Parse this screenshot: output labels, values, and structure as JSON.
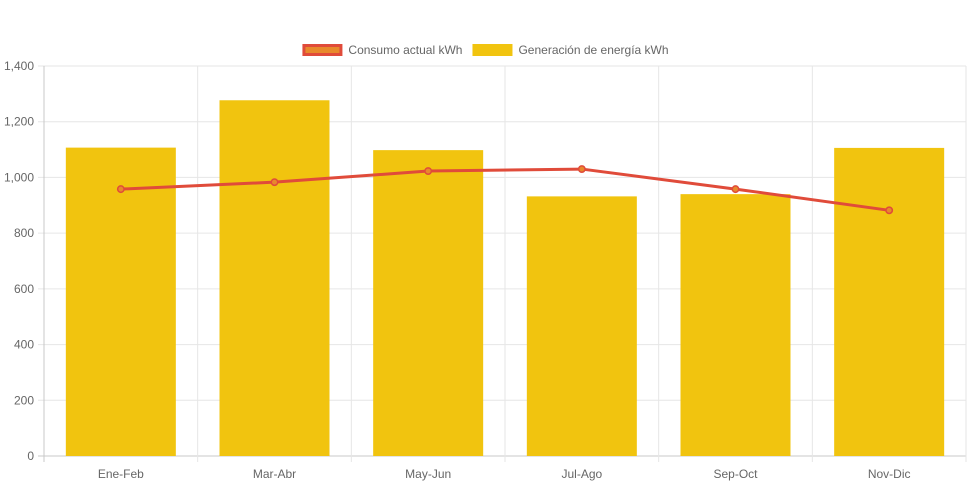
{
  "chart_data": {
    "type": "bar",
    "categories": [
      "Ene-Feb",
      "Mar-Abr",
      "May-Jun",
      "Jul-Ago",
      "Sep-Oct",
      "Nov-Dic"
    ],
    "series": [
      {
        "name": "Consumo actual kWh",
        "type": "line",
        "color": "#e04b3a",
        "point_color": "#e8892c",
        "values": [
          958,
          983,
          1023,
          1030,
          958,
          882
        ]
      },
      {
        "name": "Generación de energía kWh",
        "type": "bar",
        "color": "#f1c40f",
        "values": [
          1107,
          1277,
          1098,
          932,
          940,
          1106
        ]
      }
    ],
    "ylim": [
      0,
      1400
    ],
    "y_ticks": [
      "0",
      "200",
      "400",
      "600",
      "800",
      "1,000",
      "1,200",
      "1,400"
    ],
    "y_tick_values": [
      0,
      200,
      400,
      600,
      800,
      1000,
      1200,
      1400
    ],
    "grid": true,
    "legend": "top-center",
    "title": "",
    "xlabel": "",
    "ylabel": ""
  }
}
